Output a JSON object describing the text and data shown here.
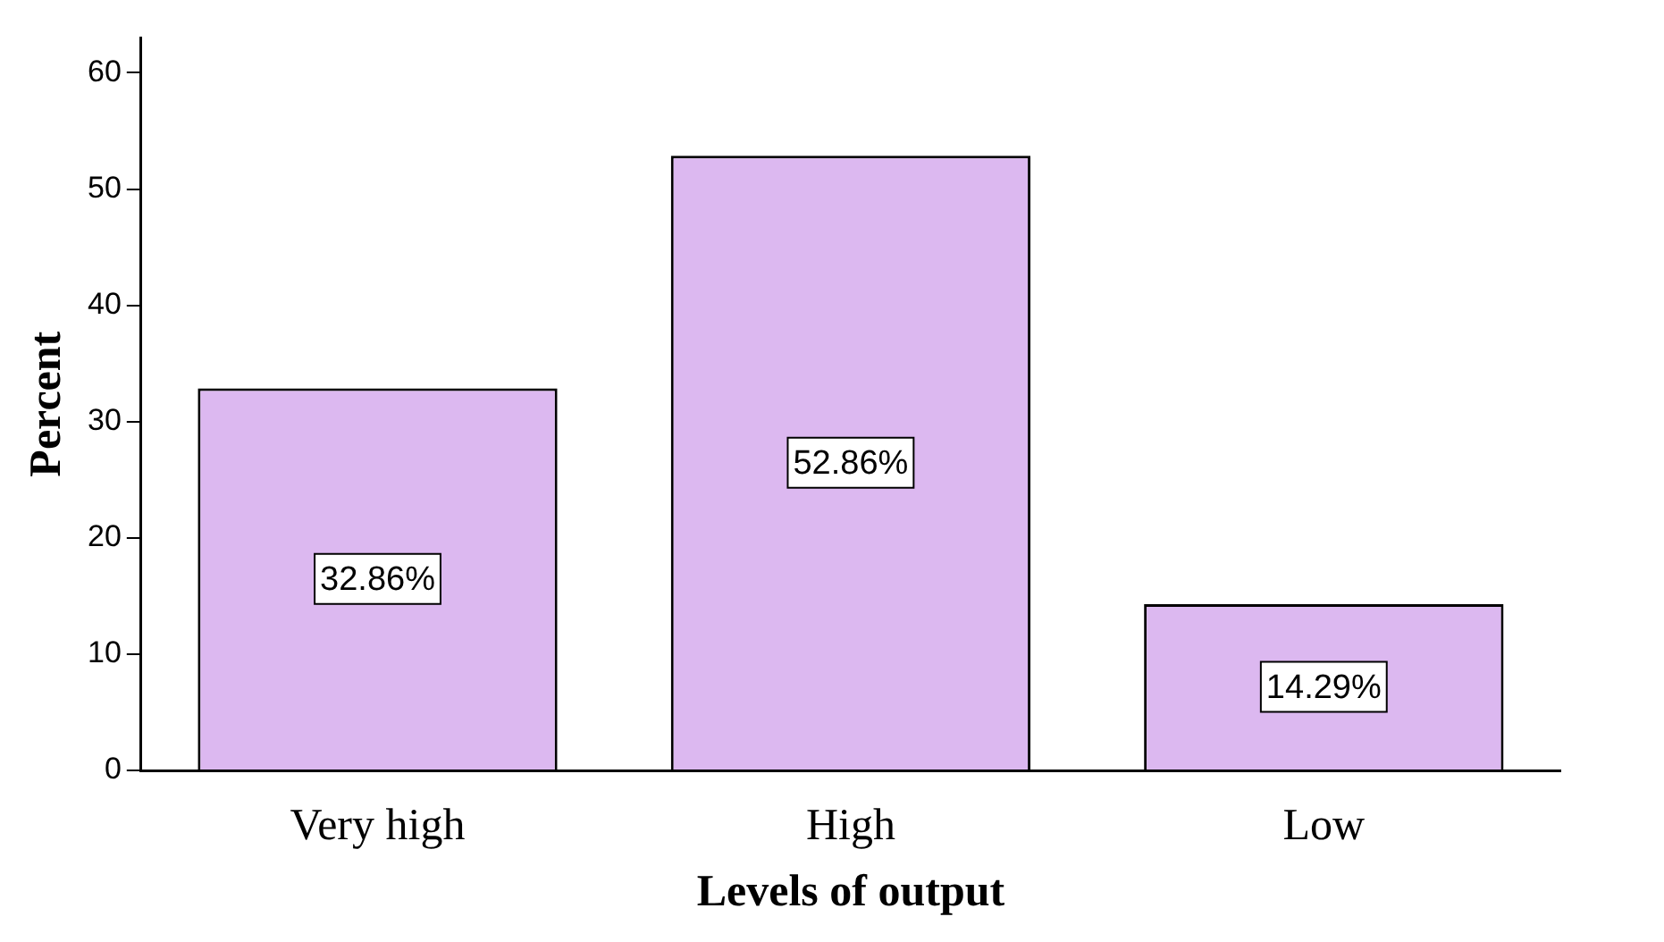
{
  "chart_data": {
    "type": "bar",
    "xlabel": "Levels of output",
    "ylabel": "Percent",
    "categories": [
      "Very high",
      "High",
      "Low"
    ],
    "values": [
      32.86,
      52.86,
      14.29
    ],
    "value_labels": [
      "32.86%",
      "52.86%",
      "14.29%"
    ],
    "color": "#dcb8f0",
    "ylim": [
      0,
      63
    ],
    "yticks": [
      0,
      10,
      20,
      30,
      40,
      50,
      60
    ],
    "grid": false,
    "legend": false
  }
}
